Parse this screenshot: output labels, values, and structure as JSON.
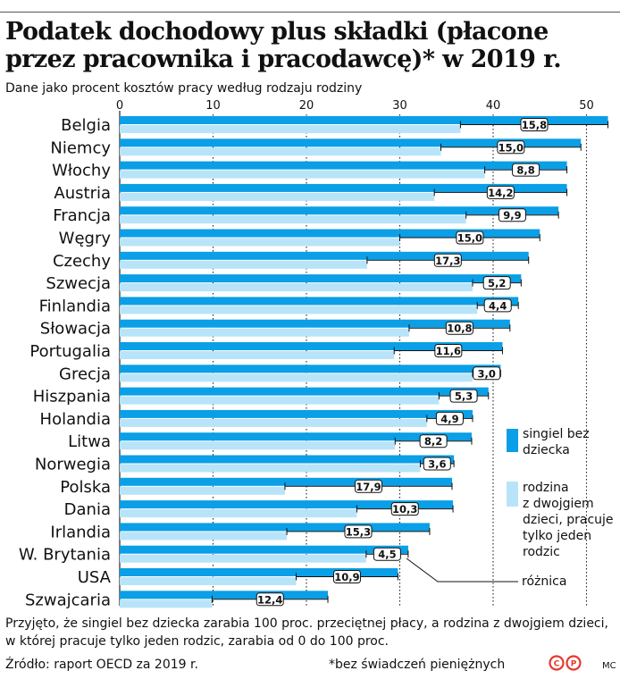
{
  "header": {
    "title": "Podatek dochodowy plus składki (płacone przez pracownika i pracodawcę)* w 2019 r.",
    "subtitle": "Dane jako procent kosztów pracy według rodzaju rodziny"
  },
  "footer": {
    "footnote": "Przyjęto, że singiel bez dziecka zarabia 100 proc. przeciętnej płacy, a rodzina z dwojgiem dzieci, w której pracuje tylko jeden rodzic, zarabia od 0 do 100 proc.",
    "source": "Źródło: raport OECD za 2019 r.",
    "note": "*bez świadczeń pieniężnych",
    "author": "MC"
  },
  "colors": {
    "single": "#0a9fe6",
    "family": "#b8e4f9",
    "grid": "#222222"
  },
  "chart_data": {
    "type": "bar",
    "orientation": "horizontal",
    "xlim": [
      0,
      52
    ],
    "x_ticks": [
      "0",
      "10",
      "20",
      "30",
      "40",
      "50"
    ],
    "x_tick_values": [
      0,
      10,
      20,
      30,
      40,
      50
    ],
    "categories": [
      "Belgia",
      "Niemcy",
      "Włochy",
      "Austria",
      "Francja",
      "Węgry",
      "Czechy",
      "Szwecja",
      "Finlandia",
      "Słowacja",
      "Portugalia",
      "Grecja",
      "Hiszpania",
      "Holandia",
      "Litwa",
      "Norwegia",
      "Polska",
      "Dania",
      "Irlandia",
      "W. Brytania",
      "USA",
      "Szwajcaria"
    ],
    "series": [
      {
        "name": "singiel bez dziecka",
        "values": [
          52.3,
          49.4,
          47.9,
          47.9,
          47.0,
          45.0,
          43.8,
          43.0,
          42.7,
          41.8,
          41.0,
          40.8,
          39.5,
          37.8,
          37.7,
          35.8,
          35.6,
          35.7,
          33.2,
          30.9,
          29.8,
          22.3
        ]
      },
      {
        "name": "rodzina z dwojgiem dzieci, pracuje tylko jeden rodzic",
        "values": [
          36.5,
          34.4,
          39.1,
          33.7,
          37.1,
          30.0,
          26.5,
          37.8,
          38.3,
          31.0,
          29.4,
          37.8,
          34.2,
          32.9,
          29.5,
          32.2,
          17.7,
          25.4,
          17.9,
          26.4,
          18.9,
          9.9
        ]
      }
    ],
    "differences": [
      "15,8",
      "15,0",
      "8,8",
      "14,2",
      "9,9",
      "15,0",
      "17,3",
      "5,2",
      "4,4",
      "10,8",
      "11,6",
      "3,0",
      "5,3",
      "4,9",
      "8,2",
      "3,6",
      "17,9",
      "10,3",
      "15,3",
      "4,5",
      "10,9",
      "12,4"
    ],
    "legend": {
      "single_lines": [
        "singiel bez",
        "dziecka"
      ],
      "family_lines": [
        "rodzina",
        "z dwojgiem",
        "dzieci, pracuje",
        "tylko jeden",
        "rodzic"
      ],
      "difference": "różnica"
    }
  }
}
